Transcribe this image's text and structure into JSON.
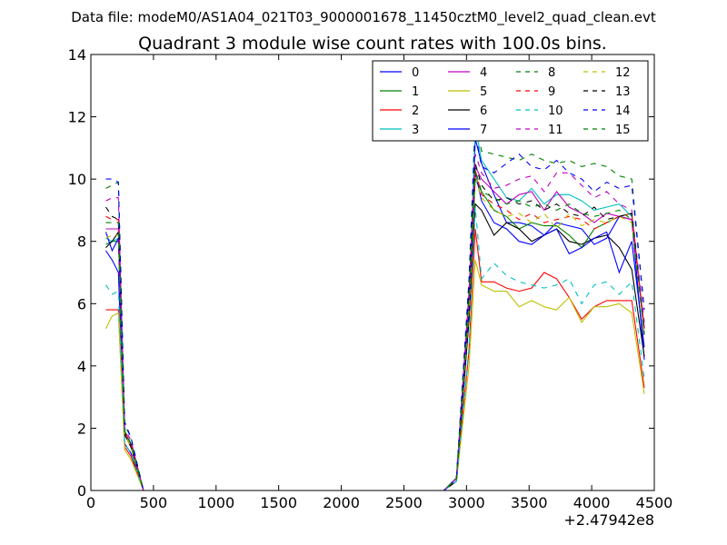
{
  "chart_data": {
    "type": "line",
    "suptitle": "Data file: modeM0/AS1A04_021T03_9000001678_11450cztM0_level2_quad_clean.evt",
    "title": "Quadrant 3 module wise count rates with 100.0s bins.",
    "xlabel": "",
    "ylabel": "",
    "xlim": [
      0,
      4500
    ],
    "ylim": [
      0,
      14
    ],
    "x_offset_label": "+2.47942e8",
    "x_ticks": [
      0,
      500,
      1000,
      1500,
      2000,
      2500,
      3000,
      3500,
      4000,
      4500
    ],
    "y_ticks": [
      0,
      2,
      4,
      6,
      8,
      10,
      12,
      14
    ],
    "x_tick_labels": [
      "0",
      "500",
      "1000",
      "1500",
      "2000",
      "2500",
      "3000",
      "3500",
      "4000",
      "4500"
    ],
    "y_tick_labels": [
      "0",
      "2",
      "4",
      "6",
      "8",
      "10",
      "12",
      "14"
    ],
    "grid": false,
    "legend_position": "top-right",
    "legend_columns": 4,
    "x": [
      120,
      170,
      220,
      270,
      320,
      420,
      520,
      620,
      720,
      820,
      920,
      1020,
      1120,
      1220,
      1320,
      1420,
      1520,
      1620,
      1720,
      1820,
      1920,
      2020,
      2120,
      2220,
      2320,
      2420,
      2520,
      2620,
      2720,
      2820,
      2920,
      3020,
      3070,
      3120,
      3220,
      3320,
      3420,
      3520,
      3620,
      3720,
      3820,
      3920,
      4020,
      4120,
      4220,
      4320,
      4420
    ],
    "series": [
      {
        "name": "0",
        "color": "#0000ff",
        "dash": "solid",
        "pre": [
          7.7,
          7.4,
          7.0,
          1.5,
          1.2
        ],
        "post": [
          0.3,
          5.5,
          11.3,
          10.5,
          9.5,
          8.6,
          8.6,
          8.5,
          8.2,
          8.6,
          8.5,
          8.4,
          7.9,
          8.1,
          8.8,
          8.7,
          4.2
        ]
      },
      {
        "name": "1",
        "color": "#008000",
        "dash": "solid",
        "pre": [
          7.9,
          8.0,
          8.0,
          1.8,
          1.4
        ],
        "post": [
          0.4,
          5.7,
          10.0,
          9.6,
          9.0,
          8.8,
          8.4,
          8.6,
          8.5,
          8.5,
          8.2,
          7.8,
          8.4,
          8.6,
          8.8,
          8.9,
          5.0
        ]
      },
      {
        "name": "2",
        "color": "#ff0000",
        "dash": "solid",
        "pre": [
          5.8,
          5.8,
          5.8,
          1.4,
          1.1
        ],
        "post": [
          0.3,
          4.5,
          8.4,
          6.7,
          6.7,
          6.5,
          6.4,
          6.5,
          7.0,
          6.8,
          6.2,
          5.5,
          5.9,
          6.1,
          6.1,
          6.1,
          3.3
        ]
      },
      {
        "name": "3",
        "color": "#00bfbf",
        "dash": "solid",
        "pre": [
          8.1,
          8.0,
          8.1,
          1.8,
          1.4
        ],
        "post": [
          0.4,
          6.0,
          11.7,
          10.6,
          10.0,
          9.4,
          9.3,
          9.7,
          9.2,
          9.5,
          9.5,
          9.3,
          9.0,
          9.1,
          9.2,
          8.8,
          5.2
        ]
      },
      {
        "name": "4",
        "color": "#bf00bf",
        "dash": "solid",
        "pre": [
          8.4,
          8.4,
          8.4,
          1.8,
          1.4
        ],
        "post": [
          0.4,
          5.9,
          10.4,
          10.0,
          9.6,
          9.2,
          9.5,
          9.6,
          9.0,
          9.6,
          9.1,
          8.9,
          8.6,
          8.9,
          8.8,
          8.7,
          5.2
        ]
      },
      {
        "name": "5",
        "color": "#bfbf00",
        "dash": "solid",
        "pre": [
          5.2,
          5.6,
          5.7,
          1.3,
          1.0
        ],
        "post": [
          0.3,
          4.0,
          7.4,
          6.6,
          6.4,
          6.4,
          5.9,
          6.1,
          5.9,
          5.8,
          6.2,
          5.4,
          5.9,
          5.9,
          6.0,
          5.7,
          3.1
        ]
      },
      {
        "name": "6",
        "color": "#000000",
        "dash": "solid",
        "pre": [
          7.8,
          8.0,
          8.3,
          1.8,
          1.4
        ],
        "post": [
          0.3,
          5.5,
          9.2,
          9.0,
          8.2,
          8.6,
          8.4,
          8.0,
          8.2,
          8.4,
          8.0,
          7.9,
          8.1,
          8.2,
          7.8,
          7.1,
          4.3
        ]
      },
      {
        "name": "7",
        "color": "#0000ff",
        "dash": "solid",
        "pre": [
          8.3,
          7.7,
          8.1,
          1.9,
          1.5
        ],
        "post": [
          0.4,
          5.9,
          10.2,
          9.3,
          8.6,
          8.4,
          8.0,
          7.9,
          8.2,
          8.4,
          7.6,
          7.8,
          8.1,
          8.3,
          7.0,
          8.0,
          4.6
        ]
      },
      {
        "name": "8",
        "color": "#008000",
        "dash": "dashed",
        "pre": [
          9.7,
          9.8,
          9.9,
          2.1,
          1.7
        ],
        "post": [
          0.4,
          6.8,
          12.0,
          10.9,
          10.8,
          10.7,
          10.6,
          10.8,
          10.6,
          10.5,
          10.6,
          10.4,
          10.5,
          10.4,
          10.1,
          10.0,
          5.8
        ]
      },
      {
        "name": "9",
        "color": "#ff0000",
        "dash": "dashed",
        "pre": [
          8.8,
          8.7,
          8.7,
          1.9,
          1.5
        ],
        "post": [
          0.4,
          6.2,
          10.3,
          9.5,
          9.2,
          9.0,
          8.7,
          8.9,
          8.6,
          8.7,
          8.8,
          8.7,
          8.4,
          8.6,
          8.8,
          8.9,
          5.2
        ]
      },
      {
        "name": "10",
        "color": "#00bfbf",
        "dash": "dashed",
        "pre": [
          6.6,
          6.3,
          6.4,
          1.5,
          1.2
        ],
        "post": [
          0.3,
          4.6,
          9.1,
          6.8,
          7.3,
          6.9,
          6.7,
          6.6,
          6.5,
          6.6,
          6.8,
          6.0,
          6.6,
          6.7,
          6.3,
          6.7,
          3.6
        ]
      },
      {
        "name": "11",
        "color": "#bf00bf",
        "dash": "dashed",
        "pre": [
          9.3,
          9.4,
          9.4,
          2.0,
          1.6
        ],
        "post": [
          0.4,
          6.4,
          10.8,
          10.2,
          9.7,
          9.8,
          10.0,
          10.1,
          9.6,
          10.2,
          10.2,
          9.8,
          9.4,
          9.6,
          9.2,
          9.0,
          5.4
        ]
      },
      {
        "name": "12",
        "color": "#bfbf00",
        "dash": "dashed",
        "pre": [
          8.1,
          8.2,
          8.2,
          1.8,
          1.4
        ],
        "post": [
          0.4,
          5.8,
          10.1,
          9.4,
          9.0,
          8.8,
          8.9,
          8.6,
          8.9,
          8.4,
          8.9,
          8.5,
          8.7,
          8.6,
          8.8,
          8.6,
          5.0
        ]
      },
      {
        "name": "13",
        "color": "#000000",
        "dash": "dashed",
        "pre": [
          9.1,
          8.8,
          8.7,
          1.9,
          1.5
        ],
        "post": [
          0.4,
          6.4,
          10.5,
          9.8,
          9.3,
          9.4,
          9.2,
          9.3,
          9.0,
          9.2,
          8.9,
          8.8,
          9.1,
          8.7,
          8.8,
          8.9,
          5.0
        ]
      },
      {
        "name": "14",
        "color": "#0000ff",
        "dash": "dashed",
        "pre": [
          10.0,
          10.0,
          9.9,
          2.2,
          1.7
        ],
        "post": [
          0.4,
          6.7,
          11.5,
          10.4,
          10.2,
          10.5,
          10.8,
          10.4,
          10.3,
          10.6,
          10.2,
          10.0,
          9.6,
          9.9,
          9.7,
          9.8,
          5.8
        ]
      },
      {
        "name": "15",
        "color": "#008000",
        "dash": "dashed",
        "pre": [
          8.6,
          8.6,
          8.6,
          1.9,
          1.5
        ],
        "post": [
          0.4,
          6.1,
          10.3,
          9.6,
          9.4,
          9.2,
          9.3,
          9.1,
          9.2,
          9.0,
          9.2,
          8.9,
          8.8,
          8.9,
          9.0,
          8.7,
          5.0
        ]
      }
    ]
  }
}
